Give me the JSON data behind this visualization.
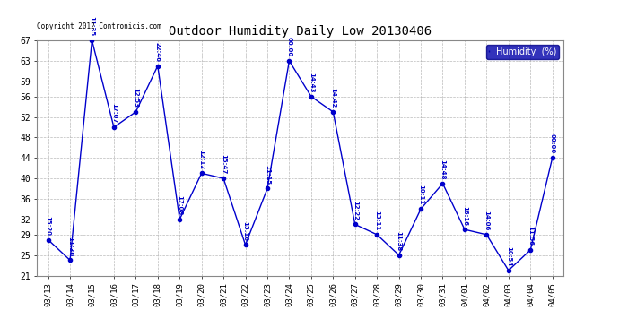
{
  "title": "Outdoor Humidity Daily Low 20130406",
  "copyright": "Copyright 2012 Contronicis.com",
  "ylabel": "Humidity (%)",
  "background_color": "#ffffff",
  "plot_bg_color": "#ffffff",
  "line_color": "#0000cc",
  "point_color": "#0000cc",
  "label_color": "#0000cc",
  "grid_color": "#aaaaaa",
  "ylim": [
    21,
    67
  ],
  "yticks": [
    21,
    25,
    29,
    32,
    36,
    40,
    44,
    48,
    52,
    56,
    59,
    63,
    67
  ],
  "data_points": [
    {
      "date": "03/13",
      "value": 28,
      "time": "15:20"
    },
    {
      "date": "03/14",
      "value": 24,
      "time": "11:30"
    },
    {
      "date": "03/15",
      "value": 67,
      "time": "11:35"
    },
    {
      "date": "03/16",
      "value": 50,
      "time": "17:07"
    },
    {
      "date": "03/17",
      "value": 53,
      "time": "12:53"
    },
    {
      "date": "03/18",
      "value": 62,
      "time": "22:46"
    },
    {
      "date": "03/19",
      "value": 32,
      "time": "17:08"
    },
    {
      "date": "03/20",
      "value": 41,
      "time": "12:12"
    },
    {
      "date": "03/21",
      "value": 40,
      "time": "15:47"
    },
    {
      "date": "03/22",
      "value": 27,
      "time": "15:10"
    },
    {
      "date": "03/23",
      "value": 38,
      "time": "11:15"
    },
    {
      "date": "03/24",
      "value": 63,
      "time": "00:00"
    },
    {
      "date": "03/25",
      "value": 56,
      "time": "14:43"
    },
    {
      "date": "03/26",
      "value": 53,
      "time": "14:42"
    },
    {
      "date": "03/27",
      "value": 31,
      "time": "12:22"
    },
    {
      "date": "03/28",
      "value": 29,
      "time": "13:11"
    },
    {
      "date": "03/29",
      "value": 25,
      "time": "11:38"
    },
    {
      "date": "03/30",
      "value": 34,
      "time": "10:11"
    },
    {
      "date": "03/31",
      "value": 39,
      "time": "14:48"
    },
    {
      "date": "04/01",
      "value": 30,
      "time": "16:16"
    },
    {
      "date": "04/02",
      "value": 29,
      "time": "14:06"
    },
    {
      "date": "04/03",
      "value": 22,
      "time": "10:54"
    },
    {
      "date": "04/04",
      "value": 26,
      "time": "11:56"
    },
    {
      "date": "04/05",
      "value": 44,
      "time": "00:00"
    }
  ],
  "legend_label": "Humidity  (%)",
  "legend_bg": "#0000aa",
  "legend_text_color": "#ffffff",
  "figsize": [
    6.9,
    3.75
  ],
  "dpi": 100
}
